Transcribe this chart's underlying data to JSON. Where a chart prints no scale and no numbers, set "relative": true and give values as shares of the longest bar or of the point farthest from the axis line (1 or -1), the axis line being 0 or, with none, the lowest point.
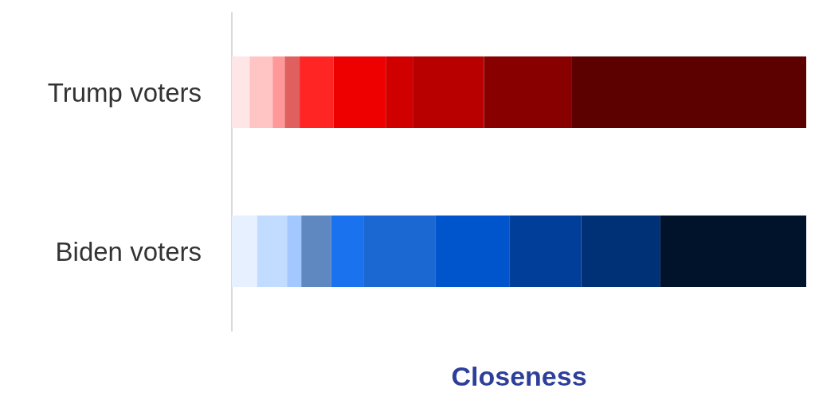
{
  "chart_data": {
    "type": "bar",
    "orientation": "horizontal",
    "stacked": true,
    "relative": true,
    "xlabel": "Closeness",
    "categories": [
      "Trump voters",
      "Biden voters"
    ],
    "series": [
      {
        "colors": [
          "#ffe6e6",
          "#e6f0ff"
        ],
        "values": [
          0.031,
          0.044
        ]
      },
      {
        "colors": [
          "#ffc4c4",
          "#c2dcff"
        ],
        "values": [
          0.04,
          0.052
        ]
      },
      {
        "colors": [
          "#ff9999",
          "#a3c8ff"
        ],
        "values": [
          0.021,
          0.025
        ]
      },
      {
        "colors": [
          "#e06060",
          "#5f88c0"
        ],
        "values": [
          0.026,
          0.052
        ]
      },
      {
        "colors": [
          "#ff2525",
          "#1b72ef"
        ],
        "values": [
          0.059,
          0.056
        ]
      },
      {
        "colors": [
          "#ee0000",
          "#1c68d2"
        ],
        "values": [
          0.091,
          0.125
        ]
      },
      {
        "colors": [
          "#d00000",
          "#0055cc"
        ],
        "values": [
          0.047,
          0.129
        ]
      },
      {
        "colors": [
          "#b80000",
          "#003e99"
        ],
        "values": [
          0.124,
          0.125
        ]
      },
      {
        "colors": [
          "#880000",
          "#003075"
        ],
        "values": [
          0.152,
          0.138
        ]
      },
      {
        "colors": [
          "#5c0000",
          "#00132a"
        ],
        "values": [
          0.409,
          0.254
        ]
      }
    ]
  }
}
